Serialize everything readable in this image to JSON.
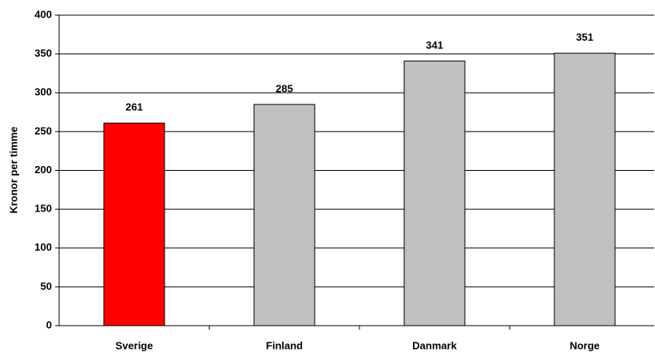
{
  "chart_data": {
    "type": "bar",
    "y_label": "Kronor per timme",
    "categories": [
      "Sverige",
      "Finland",
      "Danmark",
      "Norge"
    ],
    "values": [
      261,
      285,
      341,
      351
    ],
    "colors": [
      "#ff0000",
      "#c0c0c0",
      "#c0c0c0",
      "#c0c0c0"
    ],
    "ylim": [
      0,
      400
    ],
    "yticks": [
      0,
      50,
      100,
      150,
      200,
      250,
      300,
      350,
      400
    ],
    "grid": true
  }
}
